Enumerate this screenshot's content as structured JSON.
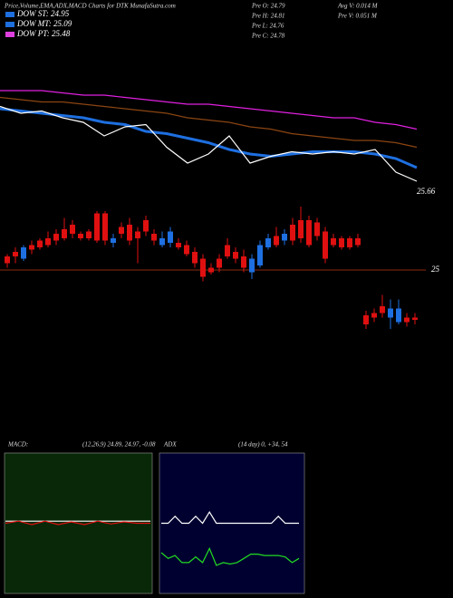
{
  "header": {
    "title": "Price,Volume,EMA,ADX,MACD Charts for DTK MunafaSutra.com",
    "legend": [
      {
        "label": "DOW ST: 24.95",
        "color": "#1e6fe0"
      },
      {
        "label": "DOW MT: 25.09",
        "color": "#1e6fe0"
      },
      {
        "label": "DOW PT: 25.48",
        "color": "#e040e0"
      }
    ],
    "stats": [
      "Pre  O: 24.79",
      "Pre  H: 24.81",
      "Pre  L: 24.76",
      "Pre  C: 24.78"
    ],
    "volume": [
      "Avg V: 0.014  M",
      "Pre  V: 0.051 M"
    ]
  },
  "chart_data": [
    {
      "type": "line",
      "annotation": "25.66",
      "ylim": [
        25.6,
        26.1
      ],
      "series": [
        {
          "color": "#e020e0",
          "values": [
            26.06,
            26.06,
            26.06,
            26.05,
            26.04,
            26.04,
            26.03,
            26.02,
            26.01,
            26.0,
            26.0,
            25.99,
            25.98,
            25.97,
            25.96,
            25.95,
            25.94,
            25.94,
            25.92,
            25.91,
            25.89
          ]
        },
        {
          "color": "#8b4513",
          "values": [
            26.03,
            26.02,
            26.01,
            26.01,
            26.0,
            25.99,
            25.98,
            25.97,
            25.96,
            25.94,
            25.93,
            25.92,
            25.9,
            25.89,
            25.87,
            25.86,
            25.85,
            25.84,
            25.84,
            25.83,
            25.81
          ]
        },
        {
          "color": "#1e6fe0",
          "values": [
            25.98,
            25.97,
            25.96,
            25.95,
            25.94,
            25.92,
            25.91,
            25.88,
            25.87,
            25.85,
            25.83,
            25.8,
            25.78,
            25.77,
            25.78,
            25.79,
            25.79,
            25.79,
            25.78,
            25.76,
            25.72
          ]
        },
        {
          "color": "#ffffff",
          "values": [
            25.99,
            25.96,
            25.97,
            25.94,
            25.92,
            25.86,
            25.9,
            25.91,
            25.81,
            25.74,
            25.78,
            25.86,
            25.74,
            25.77,
            25.79,
            25.78,
            25.79,
            25.78,
            25.8,
            25.7,
            25.66
          ]
        }
      ]
    },
    {
      "type": "candlestick",
      "ylim": [
        24.69,
        25.31
      ],
      "yticks": [
        25
      ],
      "up_color": "#1e6fe0",
      "down_color": "#e01010",
      "ohlc": [
        [
          25.06,
          25.07,
          25.01,
          25.03
        ],
        [
          25.08,
          25.1,
          25.03,
          25.06
        ],
        [
          25.05,
          25.11,
          25.04,
          25.1
        ],
        [
          25.11,
          25.13,
          25.07,
          25.09
        ],
        [
          25.13,
          25.14,
          25.09,
          25.1
        ],
        [
          25.14,
          25.17,
          25.1,
          25.11
        ],
        [
          25.16,
          25.18,
          25.11,
          25.13
        ],
        [
          25.18,
          25.23,
          25.13,
          25.14
        ],
        [
          25.2,
          25.22,
          25.14,
          25.16
        ],
        [
          25.16,
          25.17,
          25.13,
          25.14
        ],
        [
          25.17,
          25.18,
          25.13,
          25.14
        ],
        [
          25.25,
          25.26,
          25.12,
          25.13
        ],
        [
          25.25,
          25.26,
          25.11,
          25.13
        ],
        [
          25.12,
          25.16,
          25.1,
          25.14
        ],
        [
          25.19,
          25.21,
          25.14,
          25.16
        ],
        [
          25.2,
          25.23,
          25.11,
          25.13
        ],
        [
          25.17,
          25.19,
          25.03,
          25.14
        ],
        [
          25.22,
          25.24,
          25.15,
          25.17
        ],
        [
          25.16,
          25.18,
          25.11,
          25.13
        ],
        [
          25.11,
          25.17,
          25.1,
          25.14
        ],
        [
          25.12,
          25.19,
          25.1,
          25.17
        ],
        [
          25.12,
          25.14,
          25.09,
          25.1
        ],
        [
          25.11,
          25.13,
          25.06,
          25.07
        ],
        [
          25.08,
          25.1,
          25.01,
          25.03
        ],
        [
          25.05,
          25.07,
          24.95,
          24.97
        ],
        [
          25.01,
          25.03,
          24.98,
          24.99
        ],
        [
          25.05,
          25.07,
          24.99,
          25.01
        ],
        [
          25.11,
          25.14,
          25.05,
          25.06
        ],
        [
          25.08,
          25.1,
          25.03,
          25.05
        ],
        [
          25.06,
          25.09,
          24.99,
          25.01
        ],
        [
          24.99,
          25.07,
          24.96,
          25.05
        ],
        [
          25.02,
          25.13,
          25.01,
          25.11
        ],
        [
          25.1,
          25.16,
          25.09,
          25.14
        ],
        [
          25.15,
          25.19,
          25.1,
          25.11
        ],
        [
          25.13,
          25.18,
          25.11,
          25.16
        ],
        [
          25.2,
          25.23,
          25.11,
          25.13
        ],
        [
          25.22,
          25.28,
          25.12,
          25.14
        ],
        [
          25.22,
          25.24,
          25.1,
          25.11
        ],
        [
          25.21,
          25.23,
          25.13,
          25.15
        ],
        [
          25.17,
          25.19,
          25.03,
          25.05
        ],
        [
          25.14,
          25.16,
          25.1,
          25.11
        ],
        [
          25.14,
          25.15,
          25.09,
          25.1
        ],
        [
          25.14,
          25.15,
          25.09,
          25.1
        ],
        [
          25.14,
          25.16,
          25.1,
          25.11
        ],
        [
          24.8,
          24.82,
          24.74,
          24.76
        ],
        [
          24.81,
          24.83,
          24.77,
          24.79
        ],
        [
          24.84,
          24.89,
          24.79,
          24.81
        ],
        [
          24.79,
          24.87,
          24.74,
          24.83
        ],
        [
          24.77,
          24.87,
          24.76,
          24.83
        ],
        [
          24.79,
          24.81,
          24.75,
          24.77
        ],
        [
          24.79,
          24.81,
          24.76,
          24.78
        ]
      ]
    },
    {
      "type": "line",
      "title": "MACD:",
      "subtitle": "(12,26,9) 24.89, 24.97, -0.08",
      "ylim": [
        -1,
        1
      ],
      "series": [
        {
          "color": "#ffffff",
          "values": [
            0.03,
            0.03,
            0.03,
            0.03,
            0.03,
            0.03,
            0.03,
            0.03,
            0.03,
            0.03,
            0.03,
            0.03
          ]
        },
        {
          "color": "#e01010",
          "values": [
            0.0,
            0.03,
            -0.02,
            0.03,
            -0.02,
            0.02,
            -0.02,
            0.03,
            -0.01,
            0.02,
            0.0,
            0.0
          ]
        }
      ]
    },
    {
      "type": "line",
      "title": "ADX",
      "subtitle": "(14 day) 0, +34, 54",
      "ylim": [
        0,
        100
      ],
      "series": [
        {
          "color": "#ffffff",
          "values": [
            50,
            50,
            55,
            50,
            50,
            55,
            50,
            58,
            50,
            50,
            50,
            50,
            50,
            50,
            50,
            50,
            50,
            55,
            50,
            50,
            50
          ]
        },
        {
          "color": "#22dd22",
          "values": [
            29,
            25,
            27,
            22,
            22,
            26,
            22,
            32,
            20,
            22,
            21,
            22,
            25,
            28,
            28,
            27,
            27,
            27,
            26,
            22,
            25
          ]
        }
      ]
    }
  ]
}
